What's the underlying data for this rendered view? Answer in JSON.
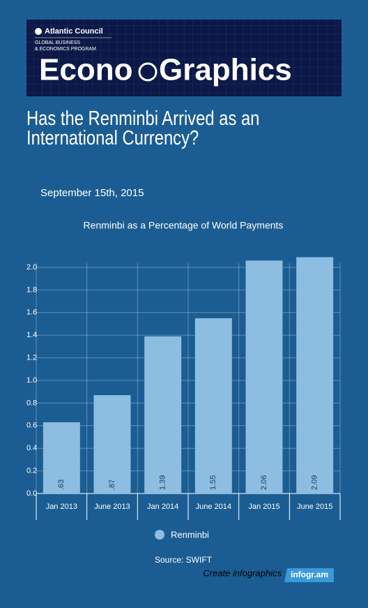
{
  "header": {
    "org": "Atlantic Council",
    "program_line1": "GLOBAL BUSINESS",
    "program_line2": "& ECONOMICS PROGRAM",
    "wordmark_left": "Econo",
    "wordmark_right": "Graphics"
  },
  "headline": "Has the Renminbi Arrived as an International Currency?",
  "date": "September 15th, 2015",
  "chart_data": {
    "type": "bar",
    "title": "Renminbi as a Percentage of World Payments",
    "categories": [
      "Jan 2013",
      "June 2013",
      "Jan 2014",
      "June 2014",
      "Jan 2015",
      "June 2015"
    ],
    "series": [
      {
        "name": "Renminbi",
        "color": "#8dbde0",
        "values": [
          0.63,
          0.87,
          1.39,
          1.55,
          2.06,
          2.09
        ],
        "value_labels": [
          ".63",
          ".87",
          "1.39",
          "1.55",
          "2.06",
          "2.09"
        ]
      }
    ],
    "ylim": [
      0,
      2.0
    ],
    "yticks": [
      {
        "value": 0,
        "label": "0.0"
      },
      0.2,
      0.4,
      0.6,
      0.8,
      {
        "value": 1,
        "label": "1.0"
      },
      1.2,
      1.4,
      1.6,
      1.8,
      {
        "value": 2,
        "label": "2.0"
      }
    ],
    "grid": true,
    "source": "Source: SWIFT"
  },
  "footer": {
    "cta": "Create infographics",
    "brand": "infogr.am"
  }
}
